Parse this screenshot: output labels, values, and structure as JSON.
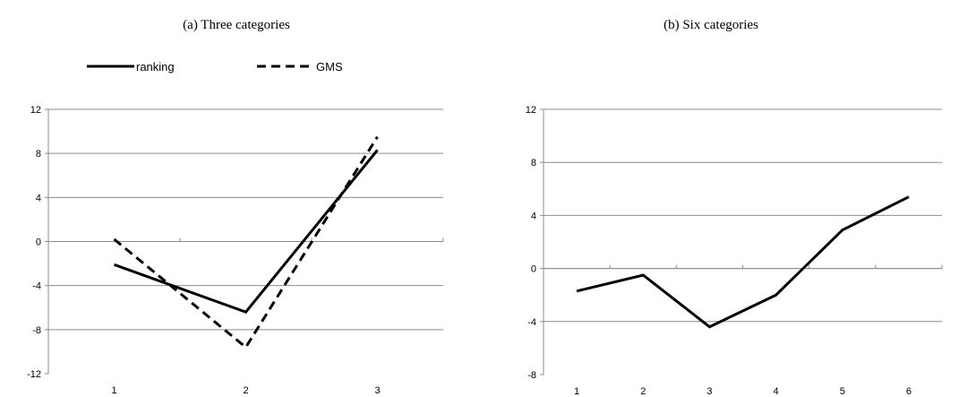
{
  "chart_data": [
    {
      "type": "line",
      "title": "(a) Three categories",
      "x": [
        1,
        2,
        3
      ],
      "xticks": [
        "1",
        "2",
        "3"
      ],
      "ylim": [
        -12,
        12
      ],
      "yticks": [
        12,
        8,
        4,
        0,
        -4,
        -8,
        -12
      ],
      "grid": "horizontal",
      "legend": "top",
      "series": [
        {
          "name": "ranking",
          "style": "solid",
          "values": [
            -2.1,
            -6.4,
            8.3
          ]
        },
        {
          "name": "GMS",
          "style": "dashed",
          "values": [
            0.2,
            -9.6,
            9.5
          ]
        }
      ]
    },
    {
      "type": "line",
      "title": "(b) Six categories",
      "x": [
        1,
        2,
        3,
        4,
        5,
        6
      ],
      "xticks": [
        "1",
        "2",
        "3",
        "4",
        "5",
        "6"
      ],
      "ylim": [
        -8,
        12
      ],
      "yticks": [
        12,
        8,
        4,
        0,
        -4,
        -8
      ],
      "grid": "horizontal",
      "legend": "none",
      "series": [
        {
          "style": "solid",
          "values": [
            -1.7,
            -0.5,
            -4.4,
            -2.0,
            2.9,
            5.4
          ]
        }
      ]
    }
  ]
}
